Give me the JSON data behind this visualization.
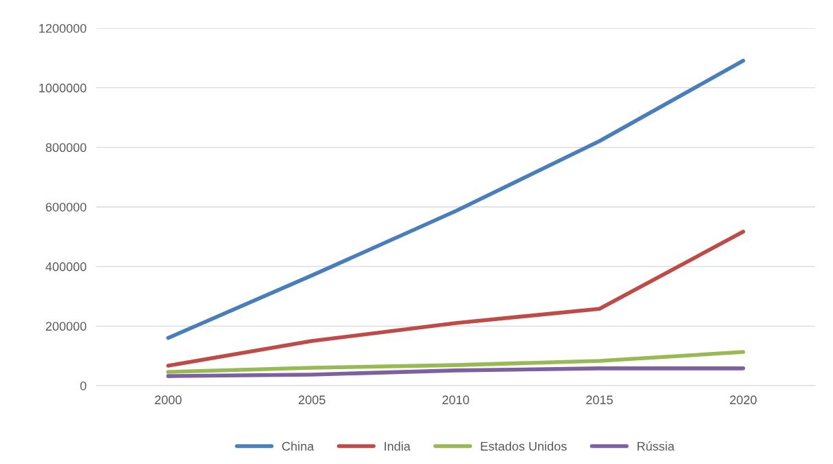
{
  "chart_data": {
    "type": "line",
    "categories": [
      "2000",
      "2005",
      "2010",
      "2015",
      "2020"
    ],
    "series": [
      {
        "name": "China",
        "color": "#4a7ebb",
        "values": [
          160000,
          370000,
          586000,
          821000,
          1091000
        ]
      },
      {
        "name": "India",
        "color": "#be4b48",
        "values": [
          67000,
          150000,
          210000,
          258000,
          517000
        ]
      },
      {
        "name": "Estados Unidos",
        "color": "#98b954",
        "values": [
          46000,
          60000,
          69000,
          83000,
          113000
        ]
      },
      {
        "name": "Rússia",
        "color": "#7d60a0",
        "values": [
          32000,
          37000,
          51000,
          58000,
          58000
        ]
      }
    ],
    "ylim": [
      0,
      1200000
    ],
    "yticks": [
      0,
      200000,
      400000,
      600000,
      800000,
      1000000,
      1200000
    ],
    "grid": "y",
    "legend": "bottom",
    "marker": "none",
    "line_style": "solid"
  }
}
